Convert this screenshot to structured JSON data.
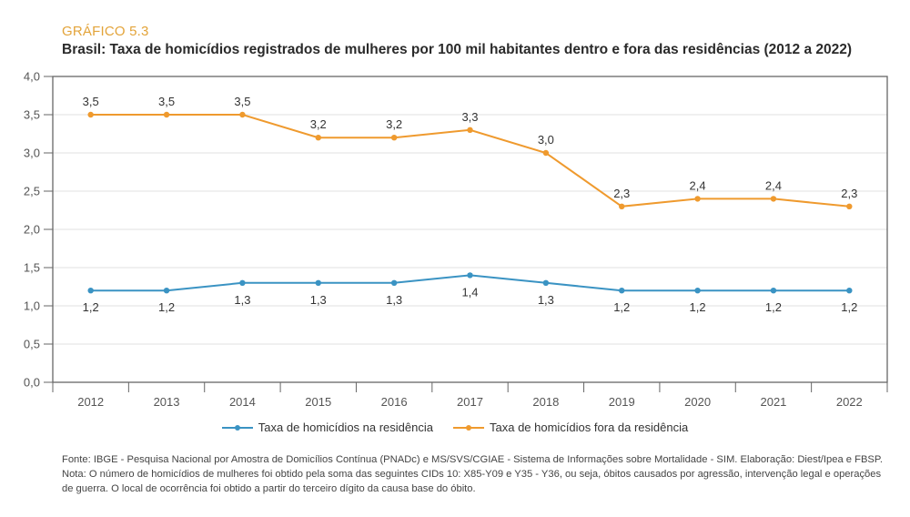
{
  "header": {
    "kicker": "GRÁFICO 5.3",
    "title": "Brasil: Taxa de homicídios registrados de mulheres por 100 mil habitantes dentro e fora das residências (2012 a 2022)"
  },
  "chart_data": {
    "type": "line",
    "title": "Brasil: Taxa de homicídios registrados de mulheres por 100 mil habitantes dentro e fora das residências (2012 a 2022)",
    "xlabel": "",
    "ylabel": "",
    "x": [
      "2012",
      "2013",
      "2014",
      "2015",
      "2016",
      "2017",
      "2018",
      "2019",
      "2020",
      "2021",
      "2022"
    ],
    "ylim": [
      0,
      4.0
    ],
    "yticks": [
      0,
      0.5,
      1.0,
      1.5,
      2.0,
      2.5,
      3.0,
      3.5,
      4.0
    ],
    "ytick_labels": [
      "0,0",
      "0,5",
      "1,0",
      "1,5",
      "2,0",
      "2,5",
      "3,0",
      "3,5",
      "4,0"
    ],
    "grid": true,
    "legend_position": "bottom-center",
    "series": [
      {
        "name": "Taxa de homicídios na residência",
        "color": "#3a93c3",
        "values": [
          1.2,
          1.2,
          1.3,
          1.3,
          1.3,
          1.4,
          1.3,
          1.2,
          1.2,
          1.2,
          1.2
        ],
        "labels": [
          "1,2",
          "1,2",
          "1,3",
          "1,3",
          "1,3",
          "1,4",
          "1,3",
          "1,2",
          "1,2",
          "1,2",
          "1,2"
        ],
        "label_position": "below"
      },
      {
        "name": "Taxa de homicídios fora da residência",
        "color": "#ef9a2e",
        "values": [
          3.5,
          3.5,
          3.5,
          3.2,
          3.2,
          3.3,
          3.0,
          2.3,
          2.4,
          2.4,
          2.3
        ],
        "labels": [
          "3,5",
          "3,5",
          "3,5",
          "3,2",
          "3,2",
          "3,3",
          "3,0",
          "2,3",
          "2,4",
          "2,4",
          "2,3"
        ],
        "label_position": "above"
      }
    ]
  },
  "footer": {
    "lines": [
      "Fonte: IBGE - Pesquisa Nacional por Amostra de Domicílios Contínua (PNADc) e MS/SVS/CGIAE - Sistema de Informações sobre Mortalidade - SIM. Elaboração: Diest/Ipea e FBSP.",
      "Nota: O número de homicídios de mulheres foi obtido pela soma das seguintes CIDs 10: X85-Y09 e Y35 - Y36, ou seja, óbitos causados por agressão, intervenção legal e operações",
      "de guerra. O local de ocorrência foi obtido a partir do terceiro dígito da causa base do óbito."
    ]
  }
}
